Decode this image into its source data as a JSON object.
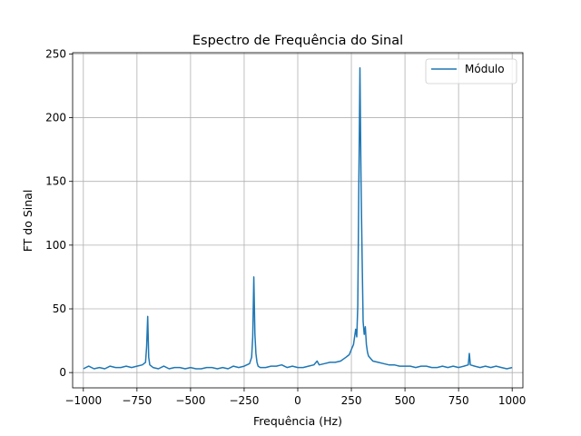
{
  "chart_data": {
    "type": "line",
    "title": "Espectro de Frequência do Sinal",
    "xlabel": "Frequência (Hz)",
    "ylabel": "FT do Sinal",
    "xlim": [
      -1050,
      1050
    ],
    "ylim": [
      -12,
      251
    ],
    "xticks": [
      -1000,
      -750,
      -500,
      -250,
      0,
      250,
      500,
      750,
      1000
    ],
    "xtick_labels": [
      "−1000",
      "−750",
      "−500",
      "−250",
      "0",
      "250",
      "500",
      "750",
      "1000"
    ],
    "yticks": [
      0,
      50,
      100,
      150,
      200,
      250
    ],
    "ytick_labels": [
      "0",
      "50",
      "100",
      "150",
      "200",
      "250"
    ],
    "grid": true,
    "legend": {
      "placement": "upper right",
      "entries": [
        "Módulo"
      ]
    },
    "series": [
      {
        "name": "Módulo",
        "color": "#1f77b4",
        "x": [
          -1000,
          -975,
          -950,
          -925,
          -900,
          -875,
          -850,
          -825,
          -800,
          -775,
          -750,
          -725,
          -710,
          -705,
          -700,
          -695,
          -690,
          -675,
          -650,
          -625,
          -600,
          -575,
          -550,
          -525,
          -500,
          -475,
          -450,
          -425,
          -400,
          -375,
          -350,
          -325,
          -300,
          -275,
          -250,
          -225,
          -215,
          -210,
          -205,
          -200,
          -195,
          -190,
          -185,
          -175,
          -150,
          -125,
          -100,
          -75,
          -50,
          -25,
          0,
          25,
          50,
          75,
          90,
          100,
          125,
          150,
          175,
          200,
          225,
          240,
          250,
          260,
          270,
          275,
          280,
          285,
          290,
          295,
          300,
          305,
          310,
          315,
          320,
          325,
          330,
          340,
          350,
          375,
          400,
          425,
          450,
          475,
          500,
          525,
          550,
          575,
          600,
          625,
          650,
          675,
          700,
          725,
          750,
          775,
          795,
          800,
          805,
          825,
          850,
          875,
          900,
          925,
          950,
          975,
          1000
        ],
        "y": [
          3,
          5,
          3,
          4,
          3,
          5,
          4,
          4,
          5,
          4,
          5,
          6,
          8,
          20,
          44,
          12,
          6,
          4,
          3,
          5,
          3,
          4,
          4,
          3,
          4,
          3,
          3,
          4,
          4,
          3,
          4,
          3,
          5,
          4,
          5,
          7,
          12,
          28,
          75,
          30,
          15,
          8,
          5,
          4,
          4,
          5,
          5,
          6,
          4,
          5,
          4,
          4,
          5,
          6,
          9,
          6,
          7,
          8,
          8,
          9,
          12,
          14,
          18,
          22,
          34,
          28,
          52,
          150,
          239,
          150,
          90,
          40,
          30,
          36,
          22,
          16,
          13,
          11,
          9,
          8,
          7,
          6,
          6,
          5,
          5,
          5,
          4,
          5,
          5,
          4,
          4,
          5,
          4,
          5,
          4,
          5,
          6,
          15,
          6,
          5,
          4,
          5,
          4,
          5,
          4,
          3,
          4
        ]
      }
    ]
  }
}
